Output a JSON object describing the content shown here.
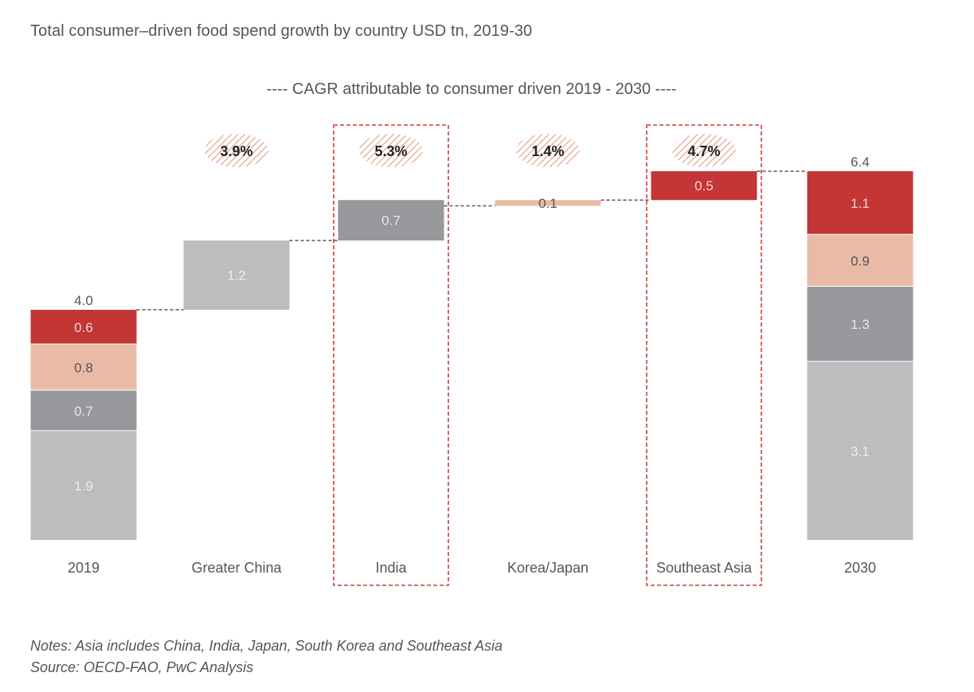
{
  "title": "Total consumer–driven food spend growth by country USD tn, 2019-30",
  "cagr_header": "---- CAGR attributable to consumer driven 2019 - 2030 ----",
  "notes": {
    "line1": "Notes: Asia includes China, India, Japan, South Korea and Southeast Asia",
    "line2": "Source: OECD-FAO, PwC Analysis"
  },
  "colors": {
    "china": "#bdbdc0",
    "india": "#98989c",
    "korea_japan": "#e9bba6",
    "sea": "#c43535",
    "highlight": "#d23a3a",
    "hatch": "#e79a84"
  },
  "chart_data": {
    "type": "waterfall",
    "title": "Total consumer–driven food spend growth by country USD tn, 2019-30",
    "categories": [
      "2019",
      "Greater China",
      "India",
      "Korea/Japan",
      "Southeast Asia",
      "2030"
    ],
    "unit": "USD tn",
    "ylim": [
      0,
      6.4
    ],
    "totals": {
      "2019": "4.0",
      "2030": "6.4"
    },
    "stacks": {
      "2019": [
        {
          "segment": "Greater China",
          "value": 1.9,
          "label": "1.9"
        },
        {
          "segment": "India",
          "value": 0.7,
          "label": "0.7"
        },
        {
          "segment": "Korea/Japan",
          "value": 0.8,
          "label": "0.8"
        },
        {
          "segment": "Southeast Asia",
          "value": 0.6,
          "label": "0.6"
        }
      ],
      "2030": [
        {
          "segment": "Greater China",
          "value": 3.1,
          "label": "3.1"
        },
        {
          "segment": "India",
          "value": 1.3,
          "label": "1.3"
        },
        {
          "segment": "Korea/Japan",
          "value": 0.9,
          "label": "0.9"
        },
        {
          "segment": "Southeast Asia",
          "value": 1.1,
          "label": "1.1"
        }
      ]
    },
    "increments": [
      {
        "category": "Greater China",
        "base": 4.0,
        "value": 1.2,
        "label": "1.2",
        "cagr": "3.9%",
        "highlighted": false
      },
      {
        "category": "India",
        "base": 5.2,
        "value": 0.7,
        "label": "0.7",
        "cagr": "5.3%",
        "highlighted": true
      },
      {
        "category": "Korea/Japan",
        "base": 5.8,
        "value": 0.1,
        "label": "0.1",
        "cagr": "1.4%",
        "highlighted": false
      },
      {
        "category": "Southeast Asia",
        "base": 5.9,
        "value": 0.5,
        "label": "0.5",
        "cagr": "4.7%",
        "highlighted": true
      }
    ]
  }
}
